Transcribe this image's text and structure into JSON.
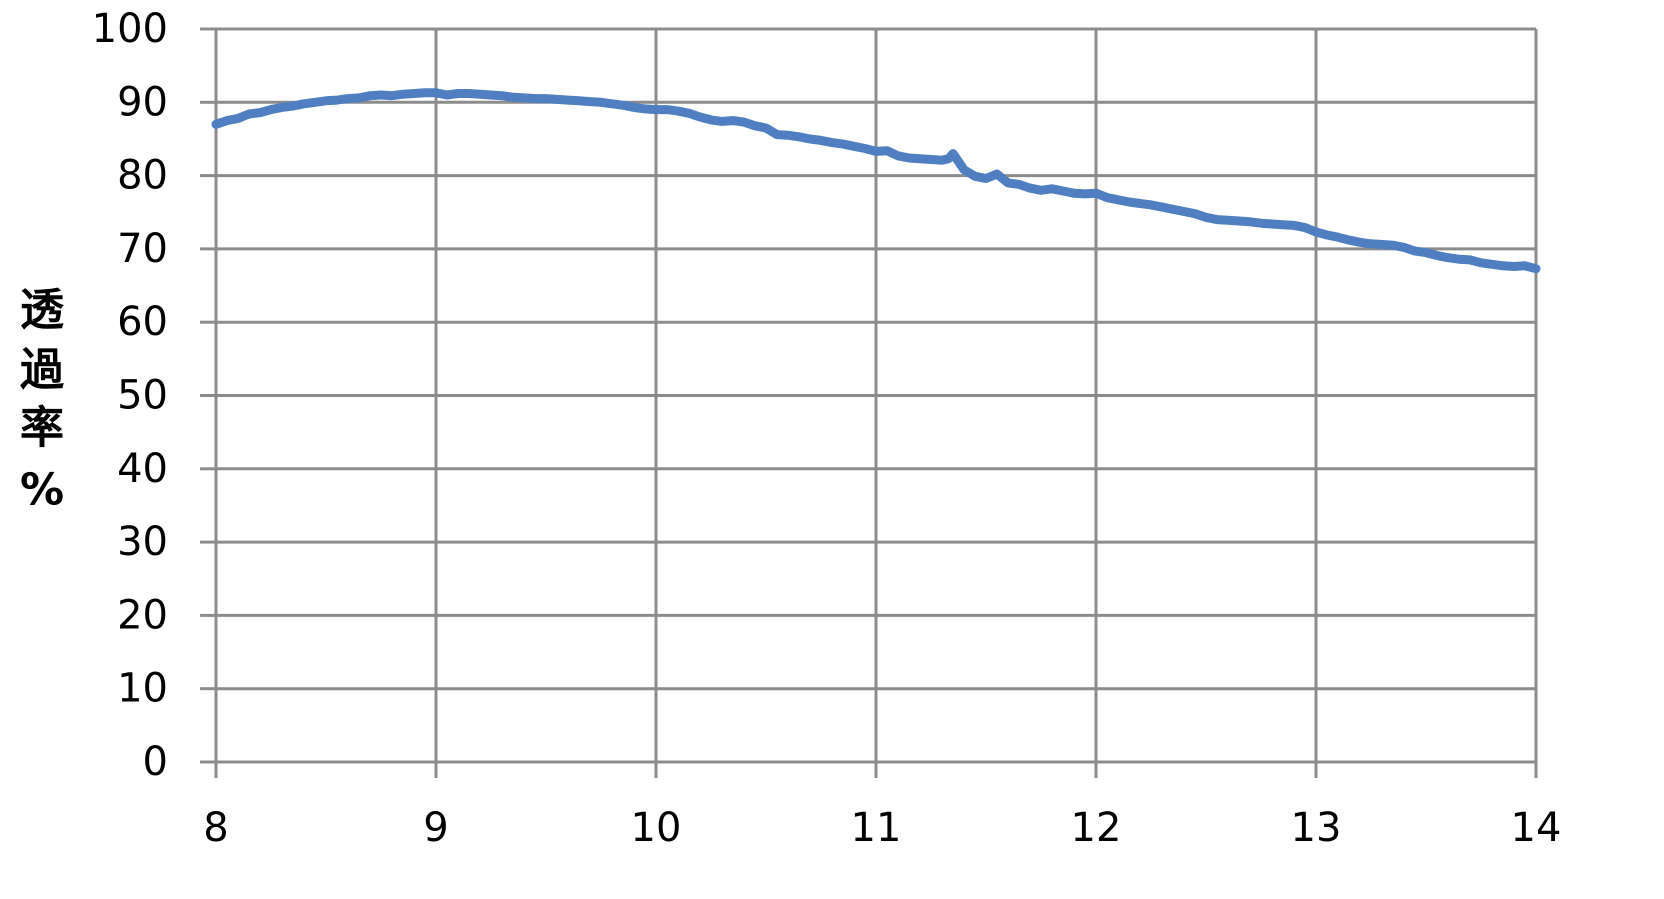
{
  "chart_data": {
    "type": "line",
    "title": "",
    "xlabel": "",
    "ylabel": "透過率%",
    "ylabel_chars": [
      "透",
      "過",
      "率",
      "%"
    ],
    "xlim": [
      8,
      14
    ],
    "ylim": [
      0,
      100
    ],
    "x_ticks": [
      8,
      9,
      10,
      11,
      12,
      13,
      14
    ],
    "x_tick_labels": [
      "8",
      "9",
      "10",
      "11",
      "12",
      "13",
      "14"
    ],
    "y_ticks": [
      0,
      10,
      20,
      30,
      40,
      50,
      60,
      70,
      80,
      90,
      100
    ],
    "y_tick_labels": [
      "0",
      "10",
      "20",
      "30",
      "40",
      "50",
      "60",
      "70",
      "80",
      "90",
      "100"
    ],
    "grid": true,
    "legend": "none",
    "colors": {
      "series": "#4f7fc0",
      "grid": "#8c8c8c",
      "axis": "#8c8c8c"
    },
    "series": [
      {
        "x": [
          8.0,
          8.05,
          8.1,
          8.15,
          8.2,
          8.25,
          8.3,
          8.35,
          8.4,
          8.45,
          8.5,
          8.55,
          8.6,
          8.65,
          8.7,
          8.75,
          8.8,
          8.85,
          8.9,
          8.95,
          9.0,
          9.05,
          9.1,
          9.15,
          9.2,
          9.25,
          9.3,
          9.35,
          9.4,
          9.45,
          9.5,
          9.55,
          9.6,
          9.65,
          9.7,
          9.75,
          9.8,
          9.85,
          9.9,
          9.95,
          10.0,
          10.05,
          10.1,
          10.15,
          10.2,
          10.25,
          10.3,
          10.35,
          10.4,
          10.45,
          10.5,
          10.55,
          10.6,
          10.65,
          10.7,
          10.75,
          10.8,
          10.85,
          10.9,
          10.95,
          11.0,
          11.05,
          11.1,
          11.15,
          11.2,
          11.25,
          11.3,
          11.33,
          11.35,
          11.4,
          11.45,
          11.5,
          11.55,
          11.6,
          11.65,
          11.7,
          11.75,
          11.8,
          11.85,
          11.9,
          11.95,
          12.0,
          12.05,
          12.1,
          12.15,
          12.2,
          12.25,
          12.3,
          12.35,
          12.4,
          12.45,
          12.5,
          12.55,
          12.6,
          12.65,
          12.7,
          12.75,
          12.8,
          12.85,
          12.9,
          12.95,
          13.0,
          13.05,
          13.1,
          13.15,
          13.2,
          13.25,
          13.3,
          13.35,
          13.4,
          13.45,
          13.5,
          13.55,
          13.6,
          13.65,
          13.7,
          13.75,
          13.8,
          13.85,
          13.9,
          13.95,
          14.0
        ],
        "y": [
          87.0,
          87.5,
          87.8,
          88.4,
          88.6,
          89.0,
          89.3,
          89.5,
          89.8,
          90.0,
          90.2,
          90.3,
          90.5,
          90.6,
          90.9,
          91.0,
          90.9,
          91.1,
          91.2,
          91.3,
          91.3,
          91.0,
          91.2,
          91.2,
          91.1,
          91.0,
          90.9,
          90.7,
          90.6,
          90.5,
          90.5,
          90.4,
          90.3,
          90.2,
          90.1,
          90.0,
          89.8,
          89.6,
          89.3,
          89.1,
          89.0,
          89.0,
          88.8,
          88.5,
          88.0,
          87.6,
          87.4,
          87.5,
          87.3,
          86.8,
          86.5,
          85.6,
          85.5,
          85.3,
          85.0,
          84.8,
          84.5,
          84.3,
          84.0,
          83.7,
          83.3,
          83.4,
          82.7,
          82.4,
          82.3,
          82.2,
          82.1,
          82.3,
          83.0,
          80.8,
          79.9,
          79.6,
          80.2,
          79.0,
          78.8,
          78.3,
          78.0,
          78.2,
          77.9,
          77.6,
          77.5,
          77.6,
          77.0,
          76.7,
          76.4,
          76.2,
          76.0,
          75.7,
          75.4,
          75.1,
          74.8,
          74.3,
          74.0,
          73.9,
          73.8,
          73.7,
          73.5,
          73.4,
          73.3,
          73.2,
          72.9,
          72.3,
          71.9,
          71.6,
          71.2,
          70.9,
          70.7,
          70.6,
          70.5,
          70.2,
          69.7,
          69.5,
          69.1,
          68.8,
          68.6,
          68.5,
          68.1,
          67.9,
          67.7,
          67.6,
          67.7,
          67.3
        ]
      }
    ]
  }
}
